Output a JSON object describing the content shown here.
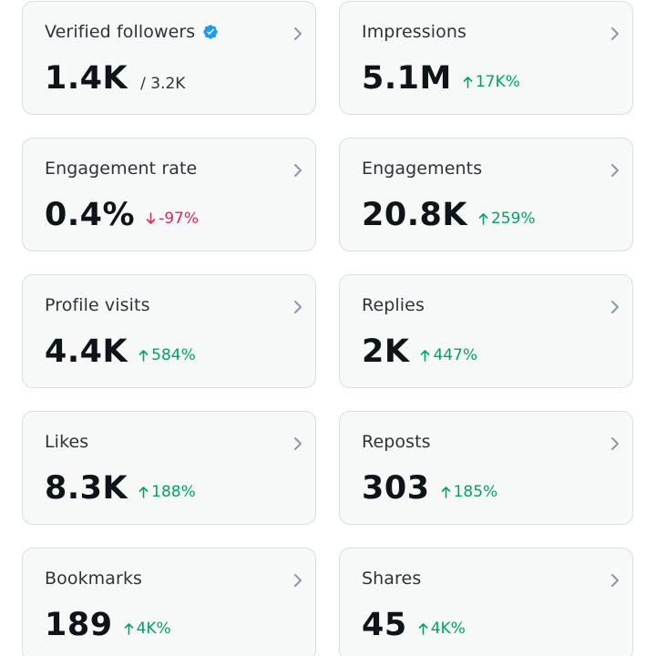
{
  "colors": {
    "card_bg": "#f7f9f9",
    "card_border": "#d8dee2",
    "title": "#2f3336",
    "value": "#0f1419",
    "positive": "#00a361",
    "negative": "#e0245e",
    "verified_badge": "#1d9bf0",
    "chevron": "#8b98a5"
  },
  "cards": [
    {
      "title": "Verified followers",
      "value": "1.4K",
      "sub": "/ 3.2K"
    },
    {
      "title": "Impressions",
      "value": "5.1M",
      "change": "17K%",
      "direction": "up"
    },
    {
      "title": "Engagement rate",
      "value": "0.4%",
      "change": "-97%",
      "direction": "down"
    },
    {
      "title": "Engagements",
      "value": "20.8K",
      "change": "259%",
      "direction": "up"
    },
    {
      "title": "Profile visits",
      "value": "4.4K",
      "change": "584%",
      "direction": "up"
    },
    {
      "title": "Replies",
      "value": "2K",
      "change": "447%",
      "direction": "up"
    },
    {
      "title": "Likes",
      "value": "8.3K",
      "change": "188%",
      "direction": "up"
    },
    {
      "title": "Reposts",
      "value": "303",
      "change": "185%",
      "direction": "up"
    },
    {
      "title": "Bookmarks",
      "value": "189",
      "change": "4K%",
      "direction": "up"
    },
    {
      "title": "Shares",
      "value": "45",
      "change": "4K%",
      "direction": "up"
    }
  ]
}
